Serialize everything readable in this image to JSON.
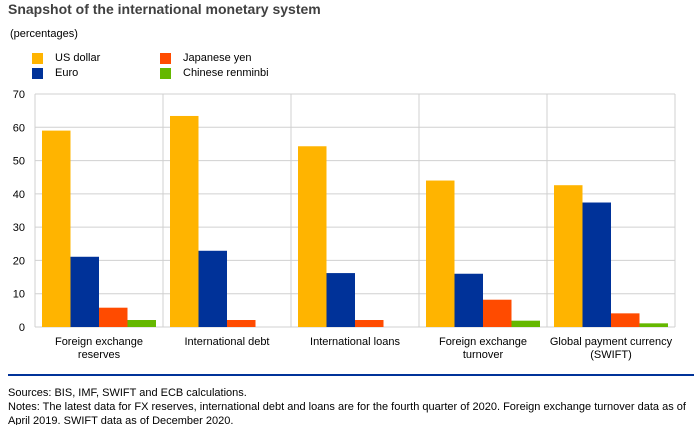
{
  "title": "Snapshot of the international monetary system",
  "unit_label": "(percentages)",
  "notes": {
    "sources": "Sources: BIS, IMF, SWIFT and ECB calculations.",
    "notes": "Notes: The latest data for FX reserves, international debt and loans are for the fourth quarter of 2020. Foreign exchange turnover data as of April 2019. SWIFT data as of December 2020."
  },
  "chart_data": {
    "type": "bar",
    "title": "Snapshot of the international monetary system",
    "ylabel": "(percentages)",
    "xlabel": "",
    "ylim": [
      0,
      70
    ],
    "yticks": [
      0,
      10,
      20,
      30,
      40,
      50,
      60,
      70
    ],
    "grid": true,
    "legend_position": "top-left",
    "categories": [
      [
        "Foreign exchange",
        "reserves"
      ],
      [
        "International debt"
      ],
      [
        "International loans"
      ],
      [
        "Foreign exchange",
        "turnover"
      ],
      [
        "Global payment currency",
        "(SWIFT)"
      ]
    ],
    "series": [
      {
        "name": "US dollar",
        "color": "#FFB400",
        "values": [
          59.0,
          63.4,
          54.3,
          44.0,
          42.6
        ]
      },
      {
        "name": "Euro",
        "color": "#003299",
        "values": [
          21.1,
          22.9,
          16.2,
          16.0,
          37.4
        ]
      },
      {
        "name": "Japanese yen",
        "color": "#FF4B00",
        "values": [
          5.8,
          2.1,
          2.1,
          8.2,
          4.1
        ]
      },
      {
        "name": "Chinese renminbi",
        "color": "#65B800",
        "values": [
          2.1,
          0,
          0,
          1.9,
          1.1
        ]
      }
    ]
  }
}
